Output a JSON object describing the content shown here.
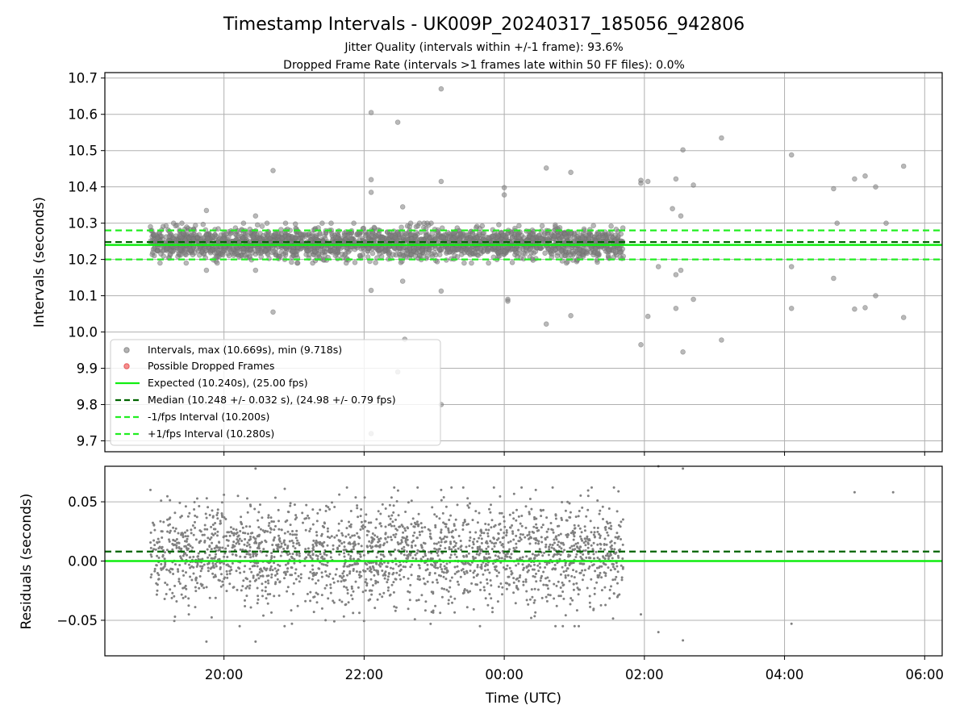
{
  "figure": {
    "title": "Timestamp Intervals - UK009P_20240317_185056_942806",
    "subtitle_1": "Jitter Quality (intervals within +/-1 frame): 93.6%",
    "subtitle_2": "Dropped Frame Rate (intervals >1 frames late within 50 FF files): 0.0%"
  },
  "chart_data": [
    {
      "type": "scatter",
      "panel": "top",
      "ylabel": "Intervals (seconds)",
      "xlim": [
        18.3,
        30.25
      ],
      "ylim": [
        9.67,
        10.715
      ],
      "grid": true,
      "yticks": [
        {
          "v": 9.7,
          "label": "9.7"
        },
        {
          "v": 9.8,
          "label": "9.8"
        },
        {
          "v": 9.9,
          "label": "9.9"
        },
        {
          "v": 10.0,
          "label": "10.0"
        },
        {
          "v": 10.1,
          "label": "10.1"
        },
        {
          "v": 10.2,
          "label": "10.2"
        },
        {
          "v": 10.3,
          "label": "10.3"
        },
        {
          "v": 10.4,
          "label": "10.4"
        },
        {
          "v": 10.5,
          "label": "10.5"
        },
        {
          "v": 10.6,
          "label": "10.6"
        },
        {
          "v": 10.7,
          "label": "10.7"
        }
      ],
      "lines": {
        "expected": 10.24,
        "median": 10.248,
        "minus_fps": 10.2,
        "plus_fps": 10.28
      },
      "band": {
        "center": 10.245,
        "sigma": 0.02,
        "min": 10.19,
        "max": 10.3,
        "count": 2400,
        "x_start": 18.95,
        "x_end": 25.7
      },
      "outliers": [
        [
          18.95,
          10.29
        ],
        [
          19.4,
          10.3
        ],
        [
          19.75,
          10.335
        ],
        [
          19.75,
          10.17
        ],
        [
          20.45,
          10.32
        ],
        [
          20.45,
          10.17
        ],
        [
          20.7,
          10.445
        ],
        [
          20.7,
          10.055
        ],
        [
          22.1,
          10.605
        ],
        [
          22.1,
          10.42
        ],
        [
          22.1,
          10.385
        ],
        [
          22.1,
          10.115
        ],
        [
          22.1,
          9.72
        ],
        [
          22.48,
          10.578
        ],
        [
          22.48,
          9.89
        ],
        [
          22.55,
          10.345
        ],
        [
          22.55,
          10.14
        ],
        [
          22.58,
          9.98
        ],
        [
          22.9,
          10.3
        ],
        [
          23.1,
          10.67
        ],
        [
          23.1,
          10.415
        ],
        [
          23.1,
          10.113
        ],
        [
          23.1,
          9.8
        ],
        [
          24.0,
          10.398
        ],
        [
          24.0,
          10.378
        ],
        [
          24.05,
          10.09
        ],
        [
          24.05,
          10.085
        ],
        [
          24.6,
          10.452
        ],
        [
          24.6,
          10.022
        ],
        [
          24.95,
          10.44
        ],
        [
          24.95,
          10.045
        ],
        [
          25.95,
          10.418
        ],
        [
          25.95,
          10.41
        ],
        [
          25.95,
          9.965
        ],
        [
          26.05,
          10.415
        ],
        [
          26.05,
          10.043
        ],
        [
          26.2,
          10.18
        ],
        [
          26.4,
          10.34
        ],
        [
          26.45,
          10.422
        ],
        [
          26.45,
          10.065
        ],
        [
          26.45,
          10.158
        ],
        [
          26.52,
          10.32
        ],
        [
          26.52,
          10.17
        ],
        [
          26.55,
          10.502
        ],
        [
          26.55,
          9.945
        ],
        [
          26.7,
          10.405
        ],
        [
          26.7,
          10.09
        ],
        [
          27.1,
          10.535
        ],
        [
          27.1,
          9.978
        ],
        [
          28.1,
          10.488
        ],
        [
          28.1,
          10.065
        ],
        [
          28.1,
          10.18
        ],
        [
          28.7,
          10.395
        ],
        [
          28.7,
          10.148
        ],
        [
          29.0,
          10.422
        ],
        [
          29.0,
          10.063
        ],
        [
          29.15,
          10.43
        ],
        [
          29.15,
          10.067
        ],
        [
          29.3,
          10.4
        ],
        [
          29.3,
          10.1
        ],
        [
          29.7,
          10.457
        ],
        [
          29.7,
          10.04
        ],
        [
          29.45,
          10.3
        ],
        [
          28.75,
          10.3
        ]
      ],
      "legend": {
        "location": "lower-left",
        "entries": [
          {
            "key": "intervals",
            "label": "Intervals, max (10.669s), min (9.718s)"
          },
          {
            "key": "dropped",
            "label": "Possible Dropped Frames"
          },
          {
            "key": "expected",
            "label": "Expected (10.240s), (25.00 fps)"
          },
          {
            "key": "median",
            "label": "Median (10.248 +/- 0.032 s), (24.98 +/- 0.79 fps)"
          },
          {
            "key": "minus",
            "label": "-1/fps Interval (10.200s)"
          },
          {
            "key": "plus",
            "label": "+1/fps Interval (10.280s)"
          }
        ]
      }
    },
    {
      "type": "scatter",
      "panel": "bottom",
      "xlabel": "Time (UTC)",
      "ylabel": "Residuals (seconds)",
      "xlim": [
        18.3,
        30.25
      ],
      "ylim": [
        -0.08,
        0.08
      ],
      "grid": true,
      "yticks": [
        {
          "v": -0.05,
          "label": "−0.05"
        },
        {
          "v": 0.0,
          "label": "0.00"
        },
        {
          "v": 0.05,
          "label": "0.05"
        }
      ],
      "xticks": [
        {
          "v": 20,
          "label": "20:00"
        },
        {
          "v": 22,
          "label": "22:00"
        },
        {
          "v": 24,
          "label": "00:00"
        },
        {
          "v": 26,
          "label": "02:00"
        },
        {
          "v": 28,
          "label": "04:00"
        },
        {
          "v": 30,
          "label": "06:00"
        }
      ],
      "lines": {
        "expected": 0.0,
        "median": 0.008
      },
      "band": {
        "center": 0.005,
        "sigma": 0.021,
        "min": -0.055,
        "max": 0.062,
        "count": 2300,
        "x_start": 18.95,
        "x_end": 25.7
      },
      "outliers": [
        [
          20.45,
          0.078
        ],
        [
          26.2,
          0.08
        ],
        [
          26.55,
          0.078
        ],
        [
          19.75,
          -0.068
        ],
        [
          20.45,
          -0.068
        ],
        [
          26.55,
          -0.067
        ],
        [
          26.2,
          -0.06
        ],
        [
          25.95,
          -0.045
        ],
        [
          28.1,
          -0.053
        ],
        [
          19.3,
          -0.047
        ],
        [
          21.45,
          -0.05
        ],
        [
          29.0,
          0.058
        ],
        [
          18.95,
          0.06
        ],
        [
          20.2,
          0.055
        ],
        [
          23.1,
          0.06
        ],
        [
          24.45,
          0.06
        ],
        [
          25.2,
          0.055
        ],
        [
          29.55,
          0.058
        ]
      ]
    }
  ],
  "colors": {
    "points": "#808080",
    "dropped": "#f06060",
    "expected": "#11ee11",
    "median": "#006400",
    "fps_bounds": "#22ee22",
    "grid": "#b0b0b0"
  }
}
